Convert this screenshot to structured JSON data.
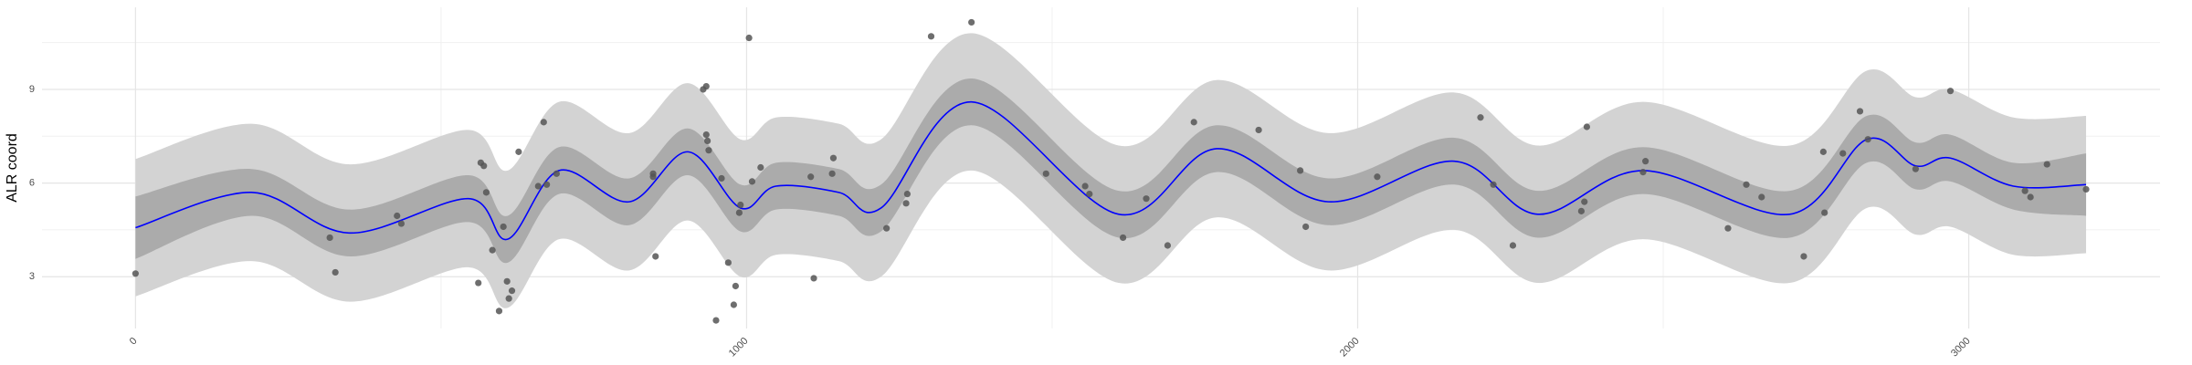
{
  "chart_data": {
    "type": "scatter",
    "y_label": "ALR coord",
    "xlim": [
      -153,
      3313
    ],
    "ylim": [
      1.34,
      11.63
    ],
    "xticks": [
      0,
      1000,
      2000,
      3000
    ],
    "yticks": [
      3,
      6,
      9
    ],
    "x_minor_ticks": [
      500,
      1500,
      2500
    ],
    "y_minor_ticks": [
      4.5,
      7.5,
      10.5
    ],
    "grid": true,
    "outer_band": {
      "color": "#d3d3d3",
      "lower": [
        2.37,
        3.5,
        2.2,
        3.3,
        2.0,
        4.2,
        3.2,
        4.8,
        3.0,
        3.7,
        3.5,
        3.0,
        6.4,
        2.8,
        4.9,
        3.2,
        4.5,
        2.8,
        4.2,
        2.8,
        5.2,
        4.35,
        4.6,
        3.7,
        3.75
      ],
      "upper": [
        6.77,
        7.9,
        6.6,
        7.7,
        6.4,
        8.6,
        7.6,
        9.2,
        7.4,
        8.1,
        7.9,
        7.4,
        10.8,
        7.2,
        9.3,
        7.6,
        8.9,
        7.2,
        8.6,
        7.2,
        9.6,
        8.75,
        9.0,
        8.1,
        8.15
      ]
    },
    "inner_band": {
      "color": "#ababab",
      "lower": [
        3.57,
        4.95,
        3.65,
        4.75,
        3.45,
        5.65,
        4.65,
        6.25,
        4.45,
        5.15,
        4.95,
        4.45,
        7.85,
        4.25,
        6.35,
        4.65,
        5.95,
        4.25,
        5.65,
        4.25,
        6.65,
        5.8,
        6.05,
        5.15,
        4.95
      ],
      "upper": [
        5.57,
        6.45,
        5.15,
        6.25,
        4.95,
        7.15,
        6.15,
        7.75,
        5.95,
        6.65,
        6.45,
        5.95,
        9.35,
        5.75,
        7.85,
        6.15,
        7.45,
        5.75,
        7.15,
        5.75,
        8.15,
        7.3,
        7.55,
        6.65,
        6.95
      ]
    },
    "fit": {
      "color": "#0000ff",
      "x": [
        0,
        190,
        350,
        545,
        609,
        693,
        808,
        904,
        990,
        1048,
        1151,
        1220,
        1368,
        1609,
        1769,
        1952,
        2158,
        2295,
        2467,
        2707,
        2833,
        2913,
        2970,
        3073,
        3192
      ],
      "y": [
        4.57,
        5.7,
        4.4,
        5.5,
        4.2,
        6.4,
        5.4,
        7.0,
        5.2,
        5.9,
        5.7,
        5.2,
        8.6,
        5.0,
        7.1,
        5.4,
        6.7,
        5.0,
        6.4,
        5.0,
        7.4,
        6.55,
        6.8,
        5.9,
        5.95
      ]
    },
    "points": {
      "color": "#555555",
      "x": [
        0,
        318,
        327,
        428,
        435,
        561,
        565,
        570,
        574,
        584,
        595,
        602,
        608,
        611,
        616,
        627,
        659,
        668,
        673,
        689,
        847,
        847,
        851,
        929,
        934,
        934,
        936,
        938,
        950,
        959,
        970,
        979,
        982,
        988,
        990,
        1004,
        1009,
        1023,
        1105,
        1110,
        1140,
        1142,
        1229,
        1263,
        1261,
        1302,
        1368,
        1490,
        1554,
        1561,
        1616,
        1654,
        1689,
        1732,
        1838,
        1906,
        1915,
        2032,
        2201,
        2222,
        2254,
        2366,
        2371,
        2375,
        2467,
        2471,
        2606,
        2636,
        2661,
        2730,
        2762,
        2764,
        2794,
        2822,
        2835,
        2913,
        2970,
        3092,
        3101,
        3128,
        3192
      ],
      "y": [
        3.1,
        4.25,
        3.14,
        4.95,
        4.7,
        2.8,
        6.65,
        6.55,
        5.7,
        3.85,
        1.9,
        4.6,
        2.85,
        2.3,
        2.55,
        7.0,
        5.9,
        7.95,
        5.95,
        6.3,
        6.3,
        6.2,
        3.65,
        9.0,
        9.1,
        7.55,
        7.35,
        7.05,
        1.6,
        6.15,
        3.45,
        2.1,
        2.7,
        5.05,
        5.3,
        10.65,
        6.05,
        6.5,
        6.2,
        2.95,
        6.3,
        6.8,
        4.55,
        5.65,
        5.35,
        10.7,
        11.15,
        6.3,
        5.9,
        5.65,
        4.25,
        5.5,
        4.0,
        7.95,
        7.7,
        6.4,
        4.6,
        6.2,
        8.1,
        5.95,
        4.0,
        5.1,
        5.4,
        7.8,
        6.35,
        6.7,
        4.55,
        5.95,
        5.55,
        3.65,
        7.0,
        5.05,
        6.95,
        8.3,
        7.4,
        6.45,
        8.95,
        5.75,
        5.55,
        6.6,
        5.8
      ]
    }
  }
}
